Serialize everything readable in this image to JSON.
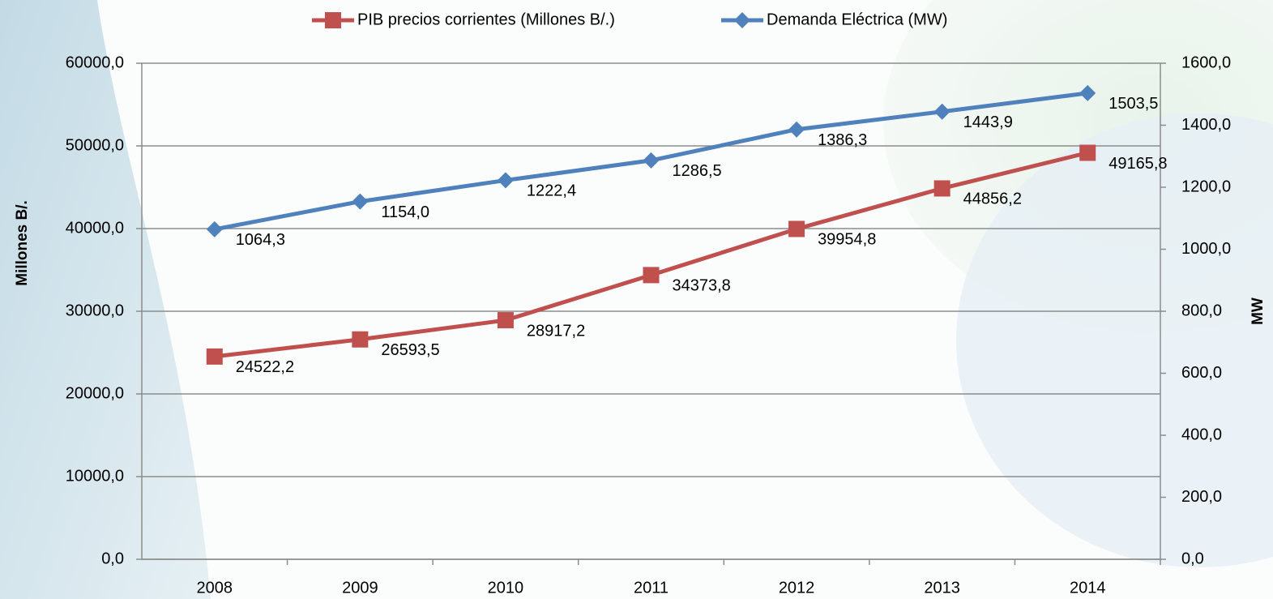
{
  "chart_data": {
    "type": "line",
    "categories": [
      "2008",
      "2009",
      "2010",
      "2011",
      "2012",
      "2013",
      "2014"
    ],
    "y_label": "Millones B/.",
    "y2_label": "MW",
    "series": [
      {
        "name": "PIB precios corrientes (Millones B/.)",
        "color": "#c0504d",
        "marker": "square",
        "values": [
          24522.2,
          26593.5,
          28917.2,
          34373.8,
          39954.8,
          44856.2,
          49165.8
        ],
        "value_labels": [
          "24522,2",
          "26593,5",
          "28917,2",
          "34373,8",
          "39954,8",
          "44856,2",
          "49165,8"
        ]
      },
      {
        "name": "Demanda Eléctrica (MW)",
        "color": "#4f81bd",
        "marker": "diamond",
        "axis": "y2",
        "values": [
          1064.3,
          1154.0,
          1222.4,
          1286.5,
          1386.3,
          1443.9,
          1503.5
        ],
        "value_labels": [
          "1064,3",
          "1154,0",
          "1222,4",
          "1286,5",
          "1386,3",
          "1443,9",
          "1503,5"
        ]
      }
    ],
    "ylim": [
      0,
      60000
    ],
    "yticks": [
      {
        "value": 0,
        "label": "0,0"
      },
      {
        "value": 10000,
        "label": "10000,0"
      },
      {
        "value": 20000,
        "label": "20000,0"
      },
      {
        "value": 30000,
        "label": "30000,0"
      },
      {
        "value": 40000,
        "label": "40000,0"
      },
      {
        "value": 50000,
        "label": "50000,0"
      },
      {
        "value": 60000,
        "label": "60000,0"
      }
    ],
    "y2lim": [
      0,
      1600
    ],
    "y2ticks": [
      {
        "value": 0,
        "label": "0,0"
      },
      {
        "value": 200,
        "label": "200,0"
      },
      {
        "value": 400,
        "label": "400,0"
      },
      {
        "value": 600,
        "label": "600,0"
      },
      {
        "value": 800,
        "label": "800,0"
      },
      {
        "value": 1000,
        "label": "1000,0"
      },
      {
        "value": 1200,
        "label": "1200,0"
      },
      {
        "value": 1400,
        "label": "1400,0"
      },
      {
        "value": 1600,
        "label": "1600,0"
      }
    ],
    "grid": true,
    "legend": "top"
  }
}
